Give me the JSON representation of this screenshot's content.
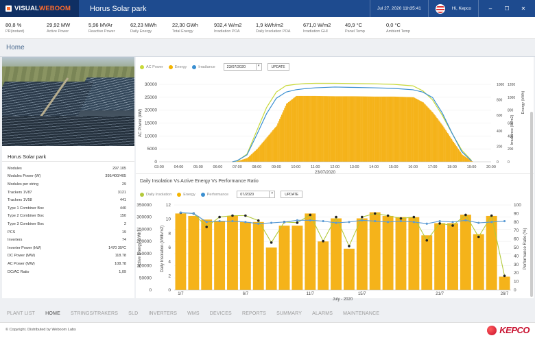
{
  "app": {
    "brand_a": "VISUAL",
    "brand_b": "WEBOOM",
    "plant_title": "Horus Solar park",
    "datetime": "Jul 27, 2020  11h35:41",
    "user": "Hi, Kepco"
  },
  "kpis": [
    {
      "value": "80,8 %",
      "label": "PR(instant)"
    },
    {
      "value": "29,92 MW",
      "label": "Active Power"
    },
    {
      "value": "5,96 MVAr",
      "label": "Reactive Power"
    },
    {
      "value": "62,23 MWh",
      "label": "Daily Energy"
    },
    {
      "value": "22,30 GWh",
      "label": "Total Energy"
    },
    {
      "value": "932,4 W/m2",
      "label": "Irradiation POA"
    },
    {
      "value": "1,9 kWh/m2",
      "label": "Daily Insolation POA"
    },
    {
      "value": "671,0 W/m2",
      "label": "Irradiation GHI"
    },
    {
      "value": "49,9 °C",
      "label": "Panel Temp"
    },
    {
      "value": "0,0 °C",
      "label": "Ambient Temp"
    }
  ],
  "page": {
    "title": "Home"
  },
  "plant": {
    "name": "Horus Solar park",
    "specs": [
      {
        "k": "Modules",
        "v": "297.105"
      },
      {
        "k": "Modules Power (W)",
        "v": "395/400/405"
      },
      {
        "k": "Modules per string",
        "v": "29"
      },
      {
        "k": "Trackers 1V87",
        "v": "3121"
      },
      {
        "k": "Trackers 1V58",
        "v": "441"
      },
      {
        "k": "Type 1 Combiner Box",
        "v": "440"
      },
      {
        "k": "Type 2 Combiner Box",
        "v": "150"
      },
      {
        "k": "Type 3 Combiner Box",
        "v": "2"
      },
      {
        "k": "PCS",
        "v": "19"
      },
      {
        "k": "Inverters",
        "v": "74"
      },
      {
        "k": "Inverter Power (kW)",
        "v": "1470 35ºC"
      },
      {
        "k": "DC Power (MW)",
        "v": "118.78"
      },
      {
        "k": "AC Power (MW)",
        "v": "108.78"
      },
      {
        "k": "DC/AC Ratio",
        "v": "1,09"
      }
    ]
  },
  "chart1_controls": {
    "legend": [
      "AC Power",
      "Energy",
      "Irradiance"
    ],
    "date": "23/07/2020",
    "update": "UPDATE"
  },
  "chart2_controls": {
    "title": "Daily Insolation Vs Active Energy Vs Performance Ratio",
    "legend": [
      "Daily Insolation",
      "Energy",
      "Performance"
    ],
    "date": "07/2020",
    "update": "UPDATE"
  },
  "colors": {
    "ac_power": "#c8d93a",
    "energy": "#f4b400",
    "irradiance": "#3a8fd1",
    "energy_bar": "#f5b31a",
    "pr_line": "#5b9bd5",
    "insolation_line": "#b3c93a"
  },
  "chart_data": [
    {
      "type": "line",
      "title": "",
      "xlabel": "23/07/2020",
      "ylabel": "AC Power (kW)",
      "y2label": "Irradiance (W/m2)",
      "y3label": "Energy (kWh)",
      "x_ticks": [
        "03:00",
        "04:00",
        "05:00",
        "06:00",
        "07:00",
        "08:00",
        "09:00",
        "10:00",
        "11:00",
        "12:00",
        "13:00",
        "14:00",
        "15:00",
        "16:00",
        "17:00",
        "18:00",
        "19:00",
        "20:00"
      ],
      "ylim": [
        0,
        30000
      ],
      "y_ticks": [
        0,
        5000,
        10000,
        15000,
        20000,
        25000,
        30000
      ],
      "y2lim": [
        0,
        1000
      ],
      "y2_ticks": [
        0,
        200,
        400,
        600,
        800,
        1000
      ],
      "y3lim": [
        0,
        1200
      ],
      "y3_ticks": [
        0,
        200,
        400,
        600,
        800,
        1000,
        1200
      ],
      "series": [
        {
          "name": "AC Power",
          "x": [
            "06:45",
            "07:00",
            "07:30",
            "08:00",
            "08:30",
            "09:00",
            "09:30",
            "10:00",
            "10:30",
            "11:00",
            "12:00",
            "13:00",
            "14:00",
            "15:00",
            "16:00",
            "16:30",
            "17:00",
            "17:30",
            "18:00",
            "18:30",
            "19:00"
          ],
          "values": [
            0,
            300,
            3000,
            12000,
            21000,
            27000,
            29500,
            30000,
            30300,
            30400,
            30400,
            30300,
            30200,
            30000,
            29400,
            27500,
            24000,
            18000,
            11000,
            4500,
            500
          ]
        },
        {
          "name": "Irradiance",
          "x": [
            "06:45",
            "07:00",
            "07:30",
            "08:00",
            "08:30",
            "09:00",
            "09:30",
            "10:00",
            "10:30",
            "11:00",
            "12:00",
            "13:00",
            "14:00",
            "15:00",
            "16:00",
            "16:30",
            "17:00",
            "17:30",
            "18:00",
            "18:30",
            "19:00"
          ],
          "values": [
            0,
            15,
            90,
            350,
            620,
            820,
            900,
            930,
            945,
            955,
            965,
            960,
            955,
            948,
            930,
            900,
            830,
            630,
            370,
            130,
            10
          ]
        },
        {
          "name": "Energy",
          "x": [
            "07:00",
            "07:30",
            "08:00",
            "08:30",
            "09:00",
            "09:30",
            "10:00",
            "11:00",
            "12:00",
            "13:00",
            "14:00",
            "15:00",
            "16:00",
            "16:30",
            "17:00",
            "17:30",
            "18:00",
            "18:30",
            "19:00"
          ],
          "values": [
            10,
            60,
            200,
            380,
            560,
            900,
            1020,
            1020,
            1015,
            1015,
            1010,
            1010,
            1000,
            920,
            760,
            560,
            330,
            110,
            10
          ]
        }
      ]
    },
    {
      "type": "bar",
      "title": "Daily Insolation Vs Active Energy Vs Performance Ratio",
      "xlabel": "July - 2020",
      "ylabel": "Active Energy (kWh)",
      "y2label": "Daily Insolation (kWh/m2)",
      "y3label": "Performance Ratio (%)",
      "categories": [
        "1/7",
        "2/7",
        "3/7",
        "4/7",
        "5/7",
        "6/7",
        "7/7",
        "8/7",
        "9/7",
        "10/7",
        "11/7",
        "12/7",
        "13/7",
        "14/7",
        "15/7",
        "16/7",
        "17/7",
        "18/7",
        "19/7",
        "20/7",
        "21/7",
        "22/7",
        "23/7",
        "24/7",
        "25/7",
        "26/7"
      ],
      "x_ticks": [
        "1/7",
        "6/7",
        "11/7",
        "15/7",
        "21/7",
        "26/7"
      ],
      "ylim": [
        0,
        350000
      ],
      "y_ticks": [
        0,
        50000,
        100000,
        150000,
        200000,
        250000,
        300000,
        350000
      ],
      "y2lim": [
        0,
        12
      ],
      "y2_ticks": [
        0,
        2,
        4,
        6,
        8,
        10,
        12
      ],
      "y3lim": [
        0,
        100
      ],
      "y3_ticks": [
        0,
        10,
        20,
        30,
        40,
        50,
        60,
        70,
        80,
        90,
        100
      ],
      "series": [
        {
          "name": "Energy",
          "values": [
            315000,
            305000,
            290000,
            285000,
            305000,
            280000,
            280000,
            175000,
            265000,
            265000,
            315000,
            200000,
            295000,
            170000,
            295000,
            320000,
            305000,
            300000,
            300000,
            225000,
            275000,
            275000,
            310000,
            230000,
            305000,
            55000
          ]
        },
        {
          "name": "Daily Insolation",
          "values": [
            10.9,
            10.8,
            8.9,
            10.3,
            10.5,
            10.5,
            9.8,
            6.7,
            9.6,
            9.5,
            10.6,
            6.9,
            10.3,
            6.2,
            10.3,
            10.8,
            10.5,
            10.1,
            10.3,
            7.0,
            9.4,
            9.1,
            10.6,
            7.5,
            10.5,
            2.0
          ]
        },
        {
          "name": "Performance",
          "values": [
            91,
            90,
            80,
            81,
            81,
            80,
            78,
            79,
            80,
            82,
            82,
            81,
            79,
            80,
            82,
            81,
            80,
            81,
            80,
            78,
            81,
            80,
            82,
            79,
            80,
            81
          ]
        }
      ]
    }
  ],
  "bottom_nav": [
    "PLANT LIST",
    "HOME",
    "STRINGS/TRAKERS",
    "SLD",
    "INVERTERS",
    "WMS",
    "DEVICES",
    "REPORTS",
    "SUMMARY",
    "ALARMS",
    "MAINTENANCE"
  ],
  "footer": {
    "copyright": "© Copyright. Distributed by Weboom Labs",
    "logo_text": "KEPCO"
  }
}
